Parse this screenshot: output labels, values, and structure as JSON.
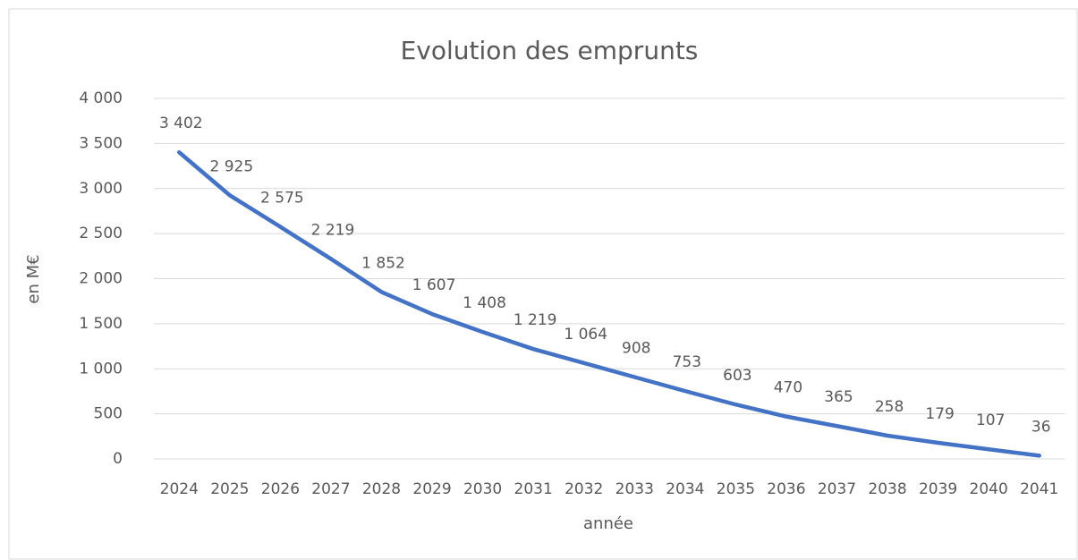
{
  "chart_data": {
    "type": "line",
    "title": "Evolution des emprunts",
    "x_label": "année",
    "y_label": "en M€",
    "categories": [
      "2024",
      "2025",
      "2026",
      "2027",
      "2028",
      "2029",
      "2030",
      "2031",
      "2032",
      "2033",
      "2034",
      "2035",
      "2036",
      "2037",
      "2038",
      "2039",
      "2040",
      "2041"
    ],
    "series": [
      {
        "name": "emprunts",
        "color": "#4472c4",
        "values": [
          3402,
          2925,
          2575,
          2219,
          1852,
          1607,
          1408,
          1219,
          1064,
          908,
          753,
          603,
          470,
          365,
          258,
          179,
          107,
          36
        ],
        "value_labels": [
          "3 402",
          "2 925",
          "2 575",
          "2 219",
          "1 852",
          "1 607",
          "1 408",
          "1 219",
          "1 064",
          "908",
          "753",
          "603",
          "470",
          "365",
          "258",
          "179",
          "107",
          "36"
        ]
      }
    ],
    "ylim": [
      0,
      4000
    ],
    "yticks": [
      0,
      500,
      {
        "value": 1000,
        "label": "1 000"
      },
      {
        "value": 1500,
        "label": "1 500"
      },
      {
        "value": 2000,
        "label": "2 000"
      },
      {
        "value": 2500,
        "label": "2 500"
      },
      {
        "value": 3000,
        "label": "3 000"
      },
      {
        "value": 3500,
        "label": "3 500"
      },
      {
        "value": 4000,
        "label": "4 000"
      }
    ],
    "grid": true
  }
}
